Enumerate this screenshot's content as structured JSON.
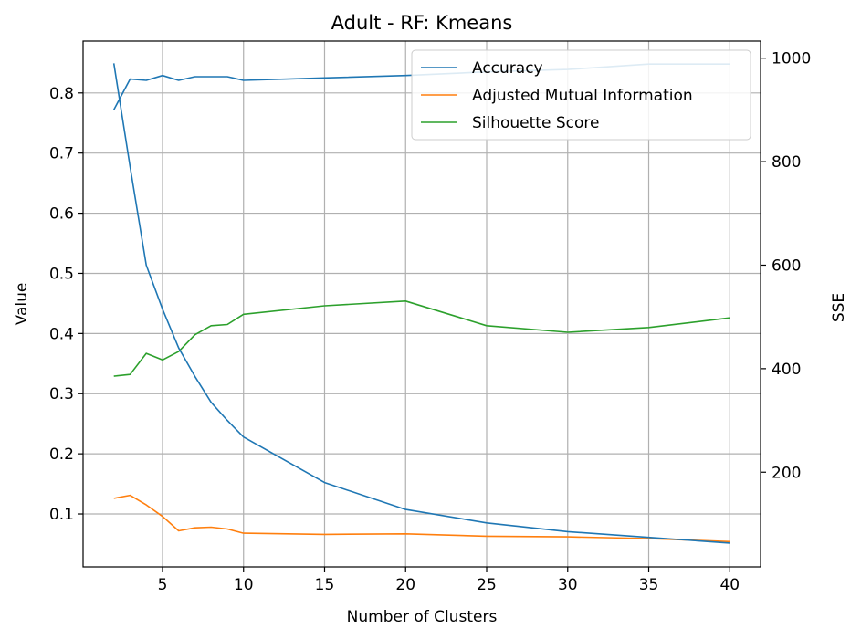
{
  "chart_data": {
    "type": "line",
    "title": "Adult - RF: Kmeans",
    "xlabel": "Number of Clusters",
    "ylabel": "Value",
    "y2label": "SSE",
    "xlim": [
      0.1,
      41.9
    ],
    "ylim": [
      0.012,
      0.8862
    ],
    "y2lim": [
      17,
      1033
    ],
    "xticks": [
      5,
      10,
      15,
      20,
      25,
      30,
      35,
      40
    ],
    "yticks": [
      0.1,
      0.2,
      0.3,
      0.4,
      0.5,
      0.6,
      0.7,
      0.8
    ],
    "y2ticks": [
      200,
      400,
      600,
      800,
      1000
    ],
    "grid": true,
    "legend_position": "top-right",
    "series": [
      {
        "name": "Accuracy",
        "axis": "left",
        "color": "#1f77b4",
        "x": [
          2,
          3,
          4,
          5,
          6,
          7,
          8,
          9,
          10,
          15,
          20,
          25,
          30,
          35,
          40
        ],
        "values": [
          0.772,
          0.823,
          0.821,
          0.829,
          0.821,
          0.827,
          0.827,
          0.827,
          0.821,
          0.825,
          0.829,
          0.835,
          0.839,
          0.848,
          0.848
        ]
      },
      {
        "name": "Adjusted Mutual Information",
        "axis": "left",
        "color": "#ff7f0e",
        "x": [
          2,
          3,
          4,
          5,
          6,
          7,
          8,
          9,
          10,
          15,
          20,
          25,
          30,
          35,
          40
        ],
        "values": [
          0.126,
          0.131,
          0.115,
          0.096,
          0.072,
          0.077,
          0.078,
          0.075,
          0.068,
          0.066,
          0.067,
          0.063,
          0.062,
          0.059,
          0.054
        ]
      },
      {
        "name": "Silhouette Score",
        "axis": "left",
        "color": "#2ca02c",
        "x": [
          2,
          3,
          4,
          5,
          6,
          7,
          8,
          9,
          10,
          15,
          20,
          25,
          30,
          35,
          40
        ],
        "values": [
          0.329,
          0.332,
          0.367,
          0.356,
          0.37,
          0.398,
          0.413,
          0.415,
          0.432,
          0.446,
          0.454,
          0.413,
          0.402,
          0.41,
          0.426
        ]
      },
      {
        "axis": "right",
        "color": "#1f77b4",
        "x": [
          2,
          3,
          4,
          5,
          6,
          7,
          8,
          9,
          10,
          15,
          20,
          25,
          30,
          35,
          40
        ],
        "values": [
          990,
          790,
          600,
          515,
          440,
          385,
          335,
          300,
          268,
          180,
          128,
          102,
          85,
          74,
          63
        ]
      }
    ]
  }
}
